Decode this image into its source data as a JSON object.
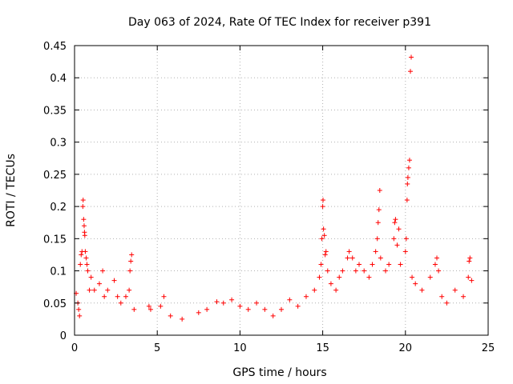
{
  "chart_data": {
    "type": "scatter",
    "title": "Day 063 of 2024, Rate Of TEC Index for receiver p391",
    "xlabel": "GPS time / hours",
    "ylabel": "ROTI / TECUs",
    "xlim": [
      0,
      25
    ],
    "ylim": [
      0,
      0.45
    ],
    "xticks": [
      0,
      5,
      10,
      15,
      20,
      25
    ],
    "yticks": [
      0,
      0.05,
      0.1,
      0.15,
      0.2,
      0.25,
      0.3,
      0.35,
      0.4,
      0.45
    ],
    "xtick_labels": [
      "0",
      "5",
      "10",
      "15",
      "20",
      "25"
    ],
    "ytick_labels": [
      "0",
      "0.05",
      "0.1",
      "0.15",
      "0.2",
      "0.25",
      "0.3",
      "0.35",
      "0.4",
      "0.45"
    ],
    "grid": true,
    "marker": "+",
    "marker_color": "#ff0000",
    "series": [
      {
        "name": "ROTI",
        "points": [
          [
            0.1,
            0.065
          ],
          [
            0.2,
            0.05
          ],
          [
            0.25,
            0.04
          ],
          [
            0.3,
            0.03
          ],
          [
            0.35,
            0.11
          ],
          [
            0.4,
            0.125
          ],
          [
            0.45,
            0.13
          ],
          [
            0.5,
            0.2
          ],
          [
            0.52,
            0.21
          ],
          [
            0.55,
            0.18
          ],
          [
            0.58,
            0.17
          ],
          [
            0.6,
            0.16
          ],
          [
            0.62,
            0.155
          ],
          [
            0.65,
            0.13
          ],
          [
            0.7,
            0.12
          ],
          [
            0.75,
            0.11
          ],
          [
            0.8,
            0.1
          ],
          [
            0.9,
            0.07
          ],
          [
            1.0,
            0.09
          ],
          [
            1.2,
            0.07
          ],
          [
            1.5,
            0.08
          ],
          [
            1.7,
            0.1
          ],
          [
            1.8,
            0.06
          ],
          [
            2.0,
            0.07
          ],
          [
            2.4,
            0.085
          ],
          [
            2.6,
            0.06
          ],
          [
            2.8,
            0.05
          ],
          [
            3.1,
            0.06
          ],
          [
            3.3,
            0.07
          ],
          [
            3.35,
            0.1
          ],
          [
            3.4,
            0.115
          ],
          [
            3.45,
            0.125
          ],
          [
            3.6,
            0.04
          ],
          [
            4.5,
            0.045
          ],
          [
            4.6,
            0.04
          ],
          [
            5.2,
            0.045
          ],
          [
            5.4,
            0.06
          ],
          [
            5.8,
            0.03
          ],
          [
            6.5,
            0.025
          ],
          [
            7.5,
            0.035
          ],
          [
            8.0,
            0.04
          ],
          [
            8.6,
            0.052
          ],
          [
            9.0,
            0.05
          ],
          [
            9.5,
            0.055
          ],
          [
            10.0,
            0.045
          ],
          [
            10.5,
            0.04
          ],
          [
            11.0,
            0.05
          ],
          [
            11.5,
            0.04
          ],
          [
            12.0,
            0.03
          ],
          [
            12.5,
            0.04
          ],
          [
            13.0,
            0.055
          ],
          [
            13.5,
            0.045
          ],
          [
            14.0,
            0.06
          ],
          [
            14.5,
            0.07
          ],
          [
            14.8,
            0.09
          ],
          [
            14.9,
            0.11
          ],
          [
            14.95,
            0.15
          ],
          [
            15.0,
            0.2
          ],
          [
            15.02,
            0.21
          ],
          [
            15.05,
            0.165
          ],
          [
            15.1,
            0.155
          ],
          [
            15.15,
            0.125
          ],
          [
            15.2,
            0.13
          ],
          [
            15.3,
            0.1
          ],
          [
            15.5,
            0.08
          ],
          [
            15.8,
            0.07
          ],
          [
            16.0,
            0.09
          ],
          [
            16.2,
            0.1
          ],
          [
            16.5,
            0.12
          ],
          [
            16.6,
            0.13
          ],
          [
            16.8,
            0.12
          ],
          [
            17.0,
            0.1
          ],
          [
            17.2,
            0.11
          ],
          [
            17.5,
            0.1
          ],
          [
            17.8,
            0.09
          ],
          [
            18.0,
            0.11
          ],
          [
            18.2,
            0.13
          ],
          [
            18.3,
            0.15
          ],
          [
            18.35,
            0.175
          ],
          [
            18.4,
            0.195
          ],
          [
            18.45,
            0.225
          ],
          [
            18.5,
            0.12
          ],
          [
            18.8,
            0.1
          ],
          [
            19.0,
            0.11
          ],
          [
            19.3,
            0.15
          ],
          [
            19.35,
            0.175
          ],
          [
            19.4,
            0.18
          ],
          [
            19.5,
            0.14
          ],
          [
            19.6,
            0.165
          ],
          [
            19.7,
            0.11
          ],
          [
            20.0,
            0.13
          ],
          [
            20.05,
            0.15
          ],
          [
            20.1,
            0.21
          ],
          [
            20.12,
            0.235
          ],
          [
            20.15,
            0.245
          ],
          [
            20.2,
            0.26
          ],
          [
            20.25,
            0.272
          ],
          [
            20.3,
            0.41
          ],
          [
            20.35,
            0.432
          ],
          [
            20.4,
            0.09
          ],
          [
            20.6,
            0.08
          ],
          [
            21.0,
            0.07
          ],
          [
            21.5,
            0.09
          ],
          [
            21.8,
            0.11
          ],
          [
            21.9,
            0.12
          ],
          [
            22.0,
            0.1
          ],
          [
            22.2,
            0.06
          ],
          [
            22.5,
            0.05
          ],
          [
            23.0,
            0.07
          ],
          [
            23.5,
            0.06
          ],
          [
            23.8,
            0.09
          ],
          [
            23.85,
            0.115
          ],
          [
            23.9,
            0.12
          ],
          [
            24.0,
            0.085
          ]
        ]
      }
    ]
  }
}
